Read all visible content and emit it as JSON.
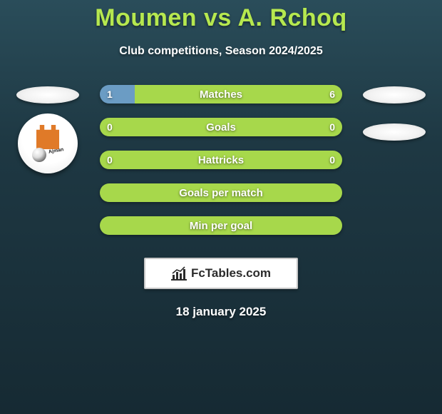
{
  "title": "Moumen vs A. Rchoq",
  "subtitle": "Club competitions, Season 2024/2025",
  "date": "18 january 2025",
  "brand": "FcTables.com",
  "colors": {
    "player1_bar": "#6b9cc4",
    "player2_bar": "#a7d84b",
    "title_color": "#b6e84f",
    "text_color": "#ffffff",
    "bg_top": "#2a4d5a",
    "bg_bottom": "#162a33",
    "logo_border": "#c7c7c7",
    "logo_bg": "#ffffff"
  },
  "stats": [
    {
      "label": "Matches",
      "p1": "1",
      "p2": "6",
      "p1_pct": 14.3,
      "p2_pct": 85.7
    },
    {
      "label": "Goals",
      "p1": "0",
      "p2": "0",
      "p1_pct": 0,
      "p2_pct": 100
    },
    {
      "label": "Hattricks",
      "p1": "0",
      "p2": "0",
      "p1_pct": 0,
      "p2_pct": 100
    },
    {
      "label": "Goals per match",
      "p1": "",
      "p2": "",
      "p1_pct": 0,
      "p2_pct": 100
    },
    {
      "label": "Min per goal",
      "p1": "",
      "p2": "",
      "p1_pct": 0,
      "p2_pct": 100
    }
  ],
  "badge": {
    "club": "Ajman",
    "fort_color": "#e07a28"
  }
}
